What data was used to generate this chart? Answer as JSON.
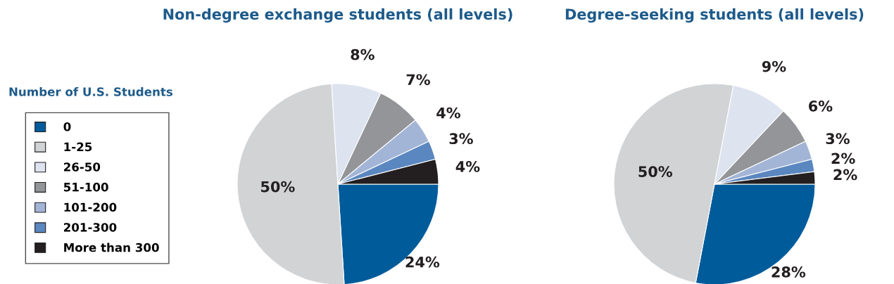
{
  "chart_data": [
    {
      "type": "pie",
      "title": "Non-degree exchange students (all levels)",
      "legend_title": "Number of U.S. Students",
      "legend": "left",
      "categories": [
        "0",
        "1-25",
        "26-50",
        "51-100",
        "101-200",
        "201-300",
        "More than 300"
      ],
      "values": [
        24,
        50,
        8,
        7,
        4,
        3,
        4
      ],
      "value_labels": [
        "24%",
        "50%",
        "8%",
        "7%",
        "4%",
        "3%",
        "4%"
      ],
      "colors": [
        "#005b9a",
        "#d1d3d5",
        "#dde3ef",
        "#939598",
        "#a3b5d6",
        "#5b87c0",
        "#231f20"
      ]
    },
    {
      "type": "pie",
      "title": "Degree-seeking students (all levels)",
      "categories": [
        null,
        null,
        null,
        null,
        null,
        null,
        null
      ],
      "values": [
        28,
        50,
        9,
        6,
        3,
        2,
        2
      ],
      "value_labels": [
        "28%",
        "50%",
        "9%",
        "6%",
        "3%",
        "2%",
        "2%"
      ],
      "colors": [
        "#005b9a",
        "#d1d3d5",
        "#dde3ef",
        "#939598",
        "#a3b5d6",
        "#5b87c0",
        "#231f20"
      ]
    }
  ]
}
